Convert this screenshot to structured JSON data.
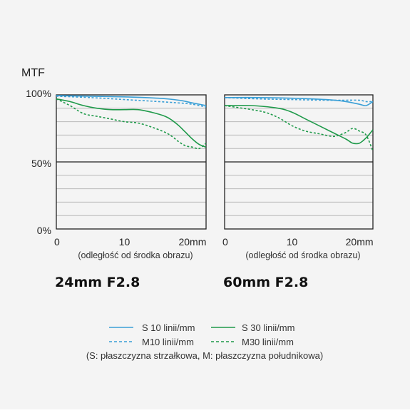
{
  "y_axis_label": "MTF",
  "y_tick_labels": [
    "100%",
    "50%",
    "0%"
  ],
  "x_axis_caption": "(odległość od środka obrazu)",
  "legend": {
    "s10": "S 10 linii/mm",
    "m10": "M10 linii/mm",
    "s30": "S 30 linii/mm",
    "m30": "M30 linii/mm",
    "note": "(S: płaszczyzna strzałkowa, M: płaszczyzna południkowa)"
  },
  "colors": {
    "blue": "#3a9fd6",
    "green": "#1f9a4a",
    "grid": "#b8b8b8",
    "axis": "#222222"
  },
  "chart_data": [
    {
      "type": "line",
      "title": "24mm F2.8",
      "xlabel": "(odległość od środka obrazu)",
      "ylabel": "MTF",
      "xlim": [
        0,
        22
      ],
      "ylim": [
        0,
        100
      ],
      "x_ticks": [
        "0",
        "10",
        "20mm"
      ],
      "y_ticks": [
        "0%",
        "50%",
        "100%"
      ],
      "series": [
        {
          "name": "S 10 linii/mm",
          "color": "#3a9fd6",
          "dash": false,
          "points": [
            [
              0,
              99.5
            ],
            [
              5,
              99
            ],
            [
              10,
              98.5
            ],
            [
              15,
              97.5
            ],
            [
              18,
              96
            ],
            [
              20,
              94
            ],
            [
              22,
              92
            ]
          ]
        },
        {
          "name": "M10 linii/mm",
          "color": "#3a9fd6",
          "dash": true,
          "points": [
            [
              0,
              99
            ],
            [
              5,
              98
            ],
            [
              10,
              96.5
            ],
            [
              15,
              95
            ],
            [
              18,
              94
            ],
            [
              20,
              93
            ],
            [
              22,
              91
            ]
          ]
        },
        {
          "name": "S 30 linii/mm",
          "color": "#1f9a4a",
          "dash": false,
          "points": [
            [
              0,
              97
            ],
            [
              2,
              95
            ],
            [
              4,
              92
            ],
            [
              6,
              90
            ],
            [
              8,
              89
            ],
            [
              10,
              89
            ],
            [
              12,
              89
            ],
            [
              14,
              87
            ],
            [
              16,
              84
            ],
            [
              17,
              81
            ],
            [
              18,
              77
            ],
            [
              19,
              72
            ],
            [
              20,
              67
            ],
            [
              21,
              63
            ],
            [
              22,
              61
            ]
          ]
        },
        {
          "name": "M30 linii/mm",
          "color": "#1f9a4a",
          "dash": true,
          "points": [
            [
              0,
              97
            ],
            [
              2,
              92
            ],
            [
              4,
              86
            ],
            [
              6,
              84
            ],
            [
              8,
              82
            ],
            [
              10,
              80
            ],
            [
              12,
              79
            ],
            [
              14,
              76
            ],
            [
              16,
              72
            ],
            [
              17,
              69
            ],
            [
              18,
              65
            ],
            [
              19,
              62
            ],
            [
              20,
              61
            ],
            [
              21,
              60
            ],
            [
              22,
              64
            ]
          ]
        }
      ]
    },
    {
      "type": "line",
      "title": "60mm F2.8",
      "xlabel": "(odległość od środka obrazu)",
      "ylabel": "MTF",
      "xlim": [
        0,
        22
      ],
      "ylim": [
        0,
        100
      ],
      "x_ticks": [
        "0",
        "10",
        "20mm"
      ],
      "y_ticks": [
        "0%",
        "50%",
        "100%"
      ],
      "series": [
        {
          "name": "S 10 linii/mm",
          "color": "#3a9fd6",
          "dash": false,
          "points": [
            [
              0,
              98
            ],
            [
              5,
              98
            ],
            [
              10,
              97.5
            ],
            [
              15,
              96.5
            ],
            [
              18,
              95
            ],
            [
              20,
              93
            ],
            [
              21,
              92
            ],
            [
              22,
              95
            ]
          ]
        },
        {
          "name": "M10 linii/mm",
          "color": "#3a9fd6",
          "dash": true,
          "points": [
            [
              0,
              98
            ],
            [
              5,
              97
            ],
            [
              10,
              96.5
            ],
            [
              15,
              96
            ],
            [
              18,
              96
            ],
            [
              20,
              96
            ],
            [
              21,
              95
            ],
            [
              22,
              95
            ]
          ]
        },
        {
          "name": "S 30 linii/mm",
          "color": "#1f9a4a",
          "dash": false,
          "points": [
            [
              0,
              92
            ],
            [
              4,
              92
            ],
            [
              8,
              90
            ],
            [
              10,
              87
            ],
            [
              12,
              82
            ],
            [
              14,
              77
            ],
            [
              16,
              72
            ],
            [
              18,
              67
            ],
            [
              19,
              64
            ],
            [
              20,
              64
            ],
            [
              21,
              68
            ],
            [
              22,
              74
            ]
          ]
        },
        {
          "name": "M30 linii/mm",
          "color": "#1f9a4a",
          "dash": true,
          "points": [
            [
              0,
              92
            ],
            [
              4,
              89
            ],
            [
              6,
              87
            ],
            [
              8,
              83
            ],
            [
              10,
              77
            ],
            [
              12,
              73
            ],
            [
              14,
              71
            ],
            [
              16,
              69
            ],
            [
              17,
              70
            ],
            [
              18,
              72
            ],
            [
              19,
              75
            ],
            [
              20,
              73
            ],
            [
              21,
              70
            ],
            [
              22,
              58
            ]
          ]
        }
      ]
    }
  ]
}
